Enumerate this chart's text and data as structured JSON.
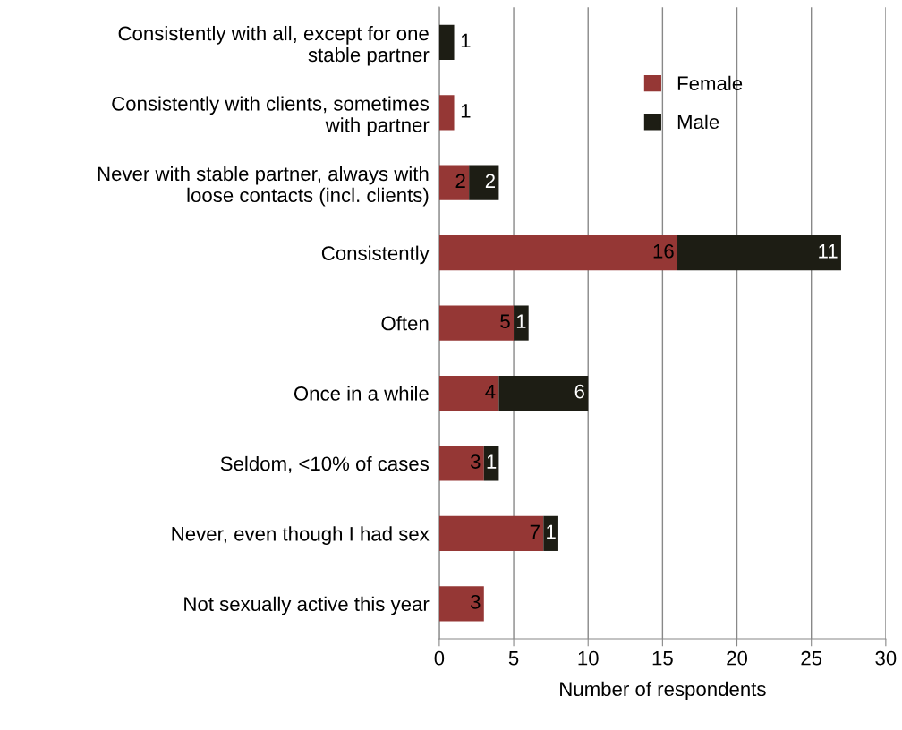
{
  "chart_data": {
    "type": "bar",
    "orientation": "horizontal",
    "stacked": true,
    "categories": [
      "Consistently with all, except for one\nstable partner",
      "Consistently with clients, sometimes\nwith partner",
      "Never with stable partner, always with\nloose contacts (incl. clients)",
      "Consistently",
      "Often",
      "Once in a while",
      "Seldom, <10% of cases",
      "Never, even though I had sex",
      "Not sexually active this year"
    ],
    "series": [
      {
        "name": "Female",
        "color": "#953735",
        "values": [
          null,
          1,
          2,
          16,
          5,
          4,
          3,
          7,
          3
        ]
      },
      {
        "name": "Male",
        "color": "#1d1d14",
        "values": [
          1,
          null,
          2,
          11,
          1,
          6,
          1,
          1,
          null
        ]
      }
    ],
    "data_labels": true,
    "xlabel": "Number of respondents",
    "xlim": [
      0,
      30
    ],
    "xticks": [
      0,
      5,
      10,
      15,
      20,
      25,
      30
    ],
    "grid": "x",
    "legend": "top right"
  }
}
